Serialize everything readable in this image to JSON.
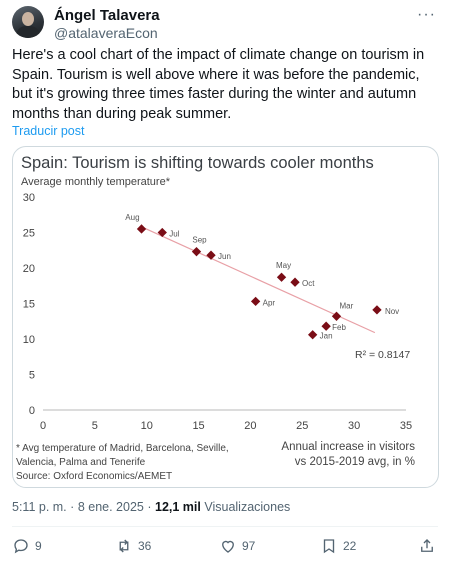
{
  "author": {
    "name": "Ángel Talavera",
    "handle": "@atalaveraEcon"
  },
  "tweet": {
    "text": "Here's a cool chart of the impact of climate change on tourism in Spain. Tourism is well above where it was before the pandemic, but it's growing three times faster during the winter and autumn months than during peak summer.",
    "translate_label": "Traducir post"
  },
  "chart_data": {
    "type": "scatter",
    "title": "Spain: Tourism is shifting towards cooler months",
    "ylabel": "Average monthly temperature*",
    "xlabel": "Annual increase in visitors vs 2015-2019 avg, in %",
    "xlabel_lines": [
      "Annual increase in visitors",
      "vs 2015-2019 avg, in %"
    ],
    "xlim": [
      0,
      35
    ],
    "ylim": [
      0,
      30
    ],
    "x_ticks": [
      0,
      5,
      10,
      15,
      20,
      25,
      30,
      35
    ],
    "y_ticks": [
      0,
      5,
      10,
      15,
      20,
      25,
      30
    ],
    "grid": false,
    "points": [
      {
        "label": "Aug",
        "x": 9.5,
        "y": 25.5
      },
      {
        "label": "Jul",
        "x": 11.5,
        "y": 25.0
      },
      {
        "label": "Sep",
        "x": 14.8,
        "y": 22.3
      },
      {
        "label": "Jun",
        "x": 16.2,
        "y": 21.8
      },
      {
        "label": "May",
        "x": 23.0,
        "y": 18.7
      },
      {
        "label": "Oct",
        "x": 24.3,
        "y": 18.0
      },
      {
        "label": "Apr",
        "x": 20.5,
        "y": 15.3
      },
      {
        "label": "Mar",
        "x": 28.3,
        "y": 13.2
      },
      {
        "label": "Nov",
        "x": 32.2,
        "y": 14.1
      },
      {
        "label": "Feb",
        "x": 27.3,
        "y": 11.8
      },
      {
        "label": "Jan",
        "x": 26.0,
        "y": 10.6
      }
    ],
    "trendline": {
      "x": [
        9.5,
        32.0
      ],
      "y": [
        25.8,
        10.9
      ]
    },
    "r_squared_label": "R² = 0.8147",
    "footnote_lines": [
      "* Avg temperature of Madrid, Barcelona, Seville,",
      "Valencia, Palma and Tenerife",
      "Source: Oxford Economics/AEMET"
    ],
    "colors": {
      "marker": "#7a0d16",
      "trendline": "#e8a0a6",
      "title": "#3a3f44"
    }
  },
  "meta": {
    "time": "5:11 p. m.",
    "separator": "·",
    "date": "8 ene. 2025",
    "views": "12,1 mil",
    "views_label": "Visualizaciones"
  },
  "actions": {
    "replies": "9",
    "reposts": "36",
    "likes": "97",
    "bookmarks": "22"
  }
}
